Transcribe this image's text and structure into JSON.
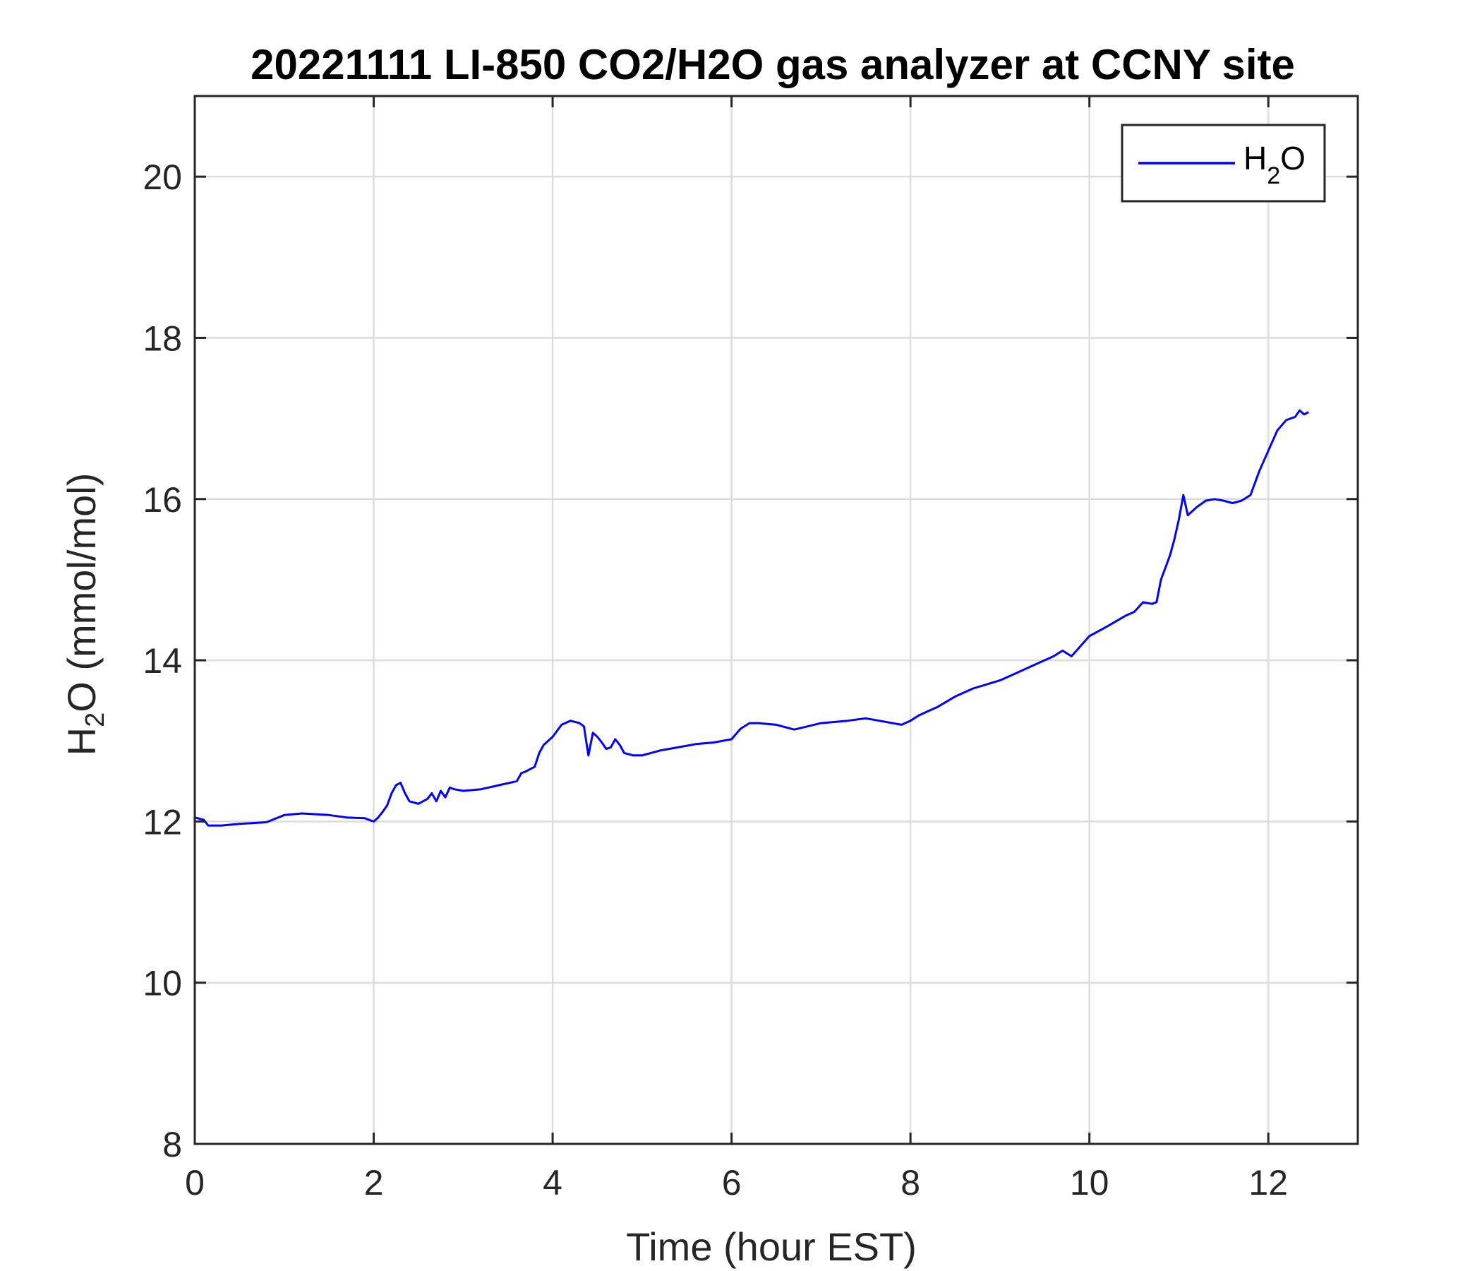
{
  "chart_data": {
    "type": "line",
    "title": "20221111 LI-850 CO2/H2O gas analyzer at CCNY site",
    "xlabel": "Time (hour EST)",
    "ylabel": {
      "base": "H",
      "subscript": "2",
      "rest": "O (mmol/mol)"
    },
    "xlim": [
      0,
      13
    ],
    "ylim": [
      8,
      21
    ],
    "xticks": [
      0,
      2,
      4,
      6,
      8,
      10,
      12
    ],
    "yticks": [
      8,
      10,
      12,
      14,
      16,
      18,
      20
    ],
    "grid": true,
    "legend_position": "top-right",
    "series": [
      {
        "name": {
          "base": "H",
          "subscript": "2",
          "rest": "O"
        },
        "color": "#0000ff",
        "x": [
          0.0,
          0.1,
          0.15,
          0.3,
          0.5,
          0.8,
          1.0,
          1.2,
          1.5,
          1.7,
          1.9,
          2.0,
          2.05,
          2.1,
          2.15,
          2.2,
          2.25,
          2.3,
          2.35,
          2.4,
          2.5,
          2.6,
          2.65,
          2.7,
          2.75,
          2.8,
          2.85,
          2.9,
          3.0,
          3.2,
          3.4,
          3.6,
          3.65,
          3.7,
          3.8,
          3.85,
          3.9,
          4.0,
          4.1,
          4.2,
          4.3,
          4.35,
          4.4,
          4.45,
          4.5,
          4.55,
          4.6,
          4.65,
          4.7,
          4.75,
          4.8,
          4.9,
          5.0,
          5.2,
          5.4,
          5.6,
          5.8,
          6.0,
          6.1,
          6.2,
          6.3,
          6.5,
          6.7,
          7.0,
          7.3,
          7.5,
          7.7,
          7.9,
          8.0,
          8.1,
          8.3,
          8.5,
          8.7,
          9.0,
          9.2,
          9.4,
          9.6,
          9.7,
          9.8,
          10.0,
          10.2,
          10.4,
          10.5,
          10.6,
          10.7,
          10.75,
          10.8,
          10.9,
          10.95,
          11.0,
          11.05,
          11.1,
          11.2,
          11.3,
          11.4,
          11.5,
          11.6,
          11.7,
          11.8,
          11.9,
          12.0,
          12.1,
          12.2,
          12.3,
          12.35,
          12.4,
          12.45
        ],
        "y": [
          12.05,
          12.02,
          11.95,
          11.95,
          11.97,
          11.99,
          12.08,
          12.1,
          12.08,
          12.05,
          12.04,
          12.0,
          12.05,
          12.12,
          12.2,
          12.35,
          12.45,
          12.48,
          12.35,
          12.25,
          12.22,
          12.28,
          12.35,
          12.25,
          12.38,
          12.3,
          12.42,
          12.4,
          12.38,
          12.4,
          12.45,
          12.5,
          12.6,
          12.62,
          12.68,
          12.85,
          12.95,
          13.05,
          13.2,
          13.25,
          13.22,
          13.18,
          12.82,
          13.1,
          13.05,
          12.98,
          12.9,
          12.92,
          13.02,
          12.95,
          12.85,
          12.82,
          12.82,
          12.88,
          12.92,
          12.96,
          12.98,
          13.02,
          13.15,
          13.22,
          13.22,
          13.2,
          13.14,
          13.22,
          13.25,
          13.28,
          13.24,
          13.2,
          13.25,
          13.32,
          13.42,
          13.55,
          13.65,
          13.75,
          13.85,
          13.95,
          14.05,
          14.12,
          14.05,
          14.3,
          14.42,
          14.55,
          14.6,
          14.72,
          14.7,
          14.72,
          15.0,
          15.3,
          15.5,
          15.75,
          16.05,
          15.8,
          15.9,
          15.98,
          16.0,
          15.98,
          15.95,
          15.98,
          16.05,
          16.35,
          16.6,
          16.85,
          16.98,
          17.02,
          17.1,
          17.05,
          17.08
        ]
      }
    ]
  }
}
